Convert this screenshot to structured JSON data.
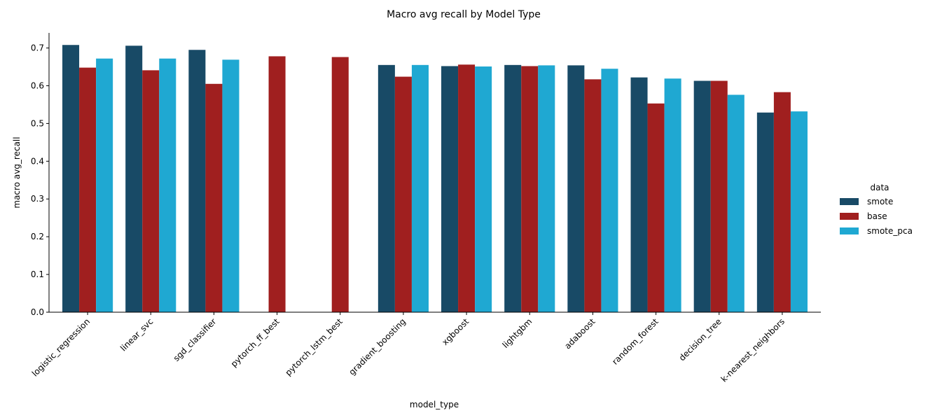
{
  "chart_data": {
    "type": "bar",
    "title": "Macro avg recall by Model Type",
    "xlabel": "model_type",
    "ylabel": "macro avg_recall",
    "ylim": [
      0,
      0.74
    ],
    "yticks": [
      "0.0",
      "0.1",
      "0.2",
      "0.3",
      "0.4",
      "0.5",
      "0.6",
      "0.7"
    ],
    "grid": false,
    "legend": {
      "title": "data",
      "placement": "right"
    },
    "categories": [
      "logistic_regression",
      "linear_svc",
      "sgd_classifier",
      "pytorch_ff_best",
      "pytorch_lstm_best",
      "gradient_boosting",
      "xgboost",
      "lightgbm",
      "adaboost",
      "random_forest",
      "decision_tree",
      "k-nearest_neighbors"
    ],
    "series": [
      {
        "name": "smote",
        "color": "#184a66",
        "values": [
          0.708,
          0.706,
          0.695,
          null,
          null,
          0.655,
          0.652,
          0.655,
          0.654,
          0.622,
          0.613,
          0.529
        ]
      },
      {
        "name": "base",
        "color": "#a01f1f",
        "values": [
          0.648,
          0.641,
          0.605,
          0.678,
          0.676,
          0.624,
          0.656,
          0.652,
          0.617,
          0.553,
          0.613,
          0.583
        ]
      },
      {
        "name": "smote_pca",
        "color": "#1fa8d2",
        "values": [
          0.672,
          0.672,
          0.669,
          null,
          null,
          0.655,
          0.651,
          0.654,
          0.645,
          0.619,
          0.576,
          0.532
        ]
      }
    ]
  }
}
